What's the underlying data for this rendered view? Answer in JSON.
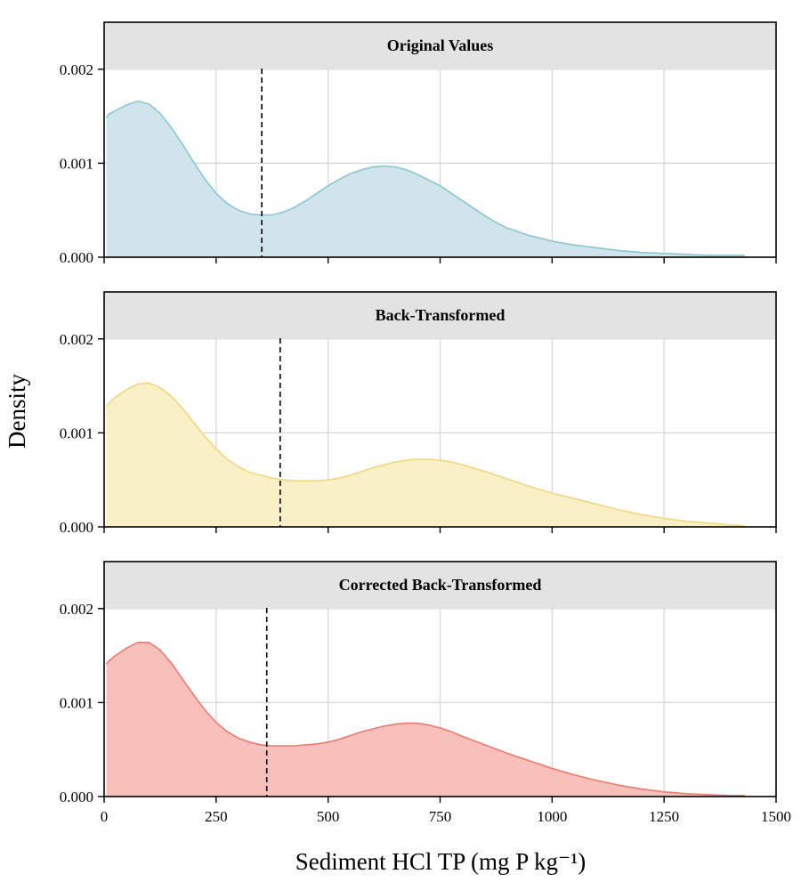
{
  "chart_data": {
    "type": "area",
    "facet_layout": "vertical",
    "xlabel": "Sediment HCl TP (mg P kg⁻¹)",
    "ylabel": "Density",
    "xlim": [
      0,
      1500
    ],
    "ylim": [
      0,
      0.0025
    ],
    "x_ticks": [
      0,
      250,
      500,
      750,
      1000,
      1250,
      1500
    ],
    "x_tick_labels": [
      "0",
      "250",
      "500",
      "750",
      "1000",
      "1250",
      "1500"
    ],
    "y_ticks": [
      0,
      0.001,
      0.002
    ],
    "y_tick_labels": [
      "0.000",
      "0.001",
      "0.002"
    ],
    "grid": true,
    "panels": [
      {
        "title": "Original Values",
        "fill": "#cfe5eb",
        "line": "#8cc6d3",
        "dashed_x": 352,
        "x": [
          5,
          10,
          25,
          50,
          75,
          100,
          125,
          150,
          175,
          200,
          225,
          250,
          275,
          300,
          325,
          350,
          375,
          400,
          425,
          450,
          475,
          500,
          525,
          550,
          575,
          600,
          625,
          650,
          675,
          700,
          725,
          750,
          775,
          800,
          825,
          850,
          875,
          900,
          950,
          1000,
          1050,
          1100,
          1150,
          1200,
          1250,
          1300,
          1350,
          1400,
          1430
        ],
        "y": [
          0.00148,
          0.00152,
          0.00156,
          0.00162,
          0.00166,
          0.00163,
          0.00153,
          0.00138,
          0.0012,
          0.00101,
          0.00083,
          0.00068,
          0.00057,
          0.0005,
          0.00046,
          0.00045,
          0.00045,
          0.00048,
          0.00053,
          0.0006,
          0.00068,
          0.00076,
          0.00083,
          0.00089,
          0.00093,
          0.00096,
          0.00097,
          0.00096,
          0.00093,
          0.00088,
          0.00082,
          0.00076,
          0.00068,
          0.0006,
          0.00052,
          0.00044,
          0.00037,
          0.00031,
          0.00023,
          0.00017,
          0.00013,
          0.0001,
          7e-05,
          5e-05,
          4e-05,
          3e-05,
          2e-05,
          2e-05,
          2e-05
        ]
      },
      {
        "title": "Back-Transformed",
        "fill": "#faf0c8",
        "line": "#f0d77c",
        "dashed_x": 393,
        "x": [
          5,
          10,
          25,
          50,
          75,
          100,
          125,
          150,
          175,
          200,
          225,
          250,
          275,
          300,
          325,
          350,
          375,
          400,
          425,
          450,
          475,
          500,
          525,
          550,
          575,
          600,
          625,
          650,
          675,
          700,
          725,
          750,
          775,
          800,
          850,
          900,
          950,
          1000,
          1050,
          1100,
          1150,
          1200,
          1250,
          1300,
          1350,
          1400,
          1430
        ],
        "y": [
          0.00128,
          0.00131,
          0.00138,
          0.00146,
          0.00152,
          0.00153,
          0.00148,
          0.00139,
          0.00126,
          0.00111,
          0.00096,
          0.00083,
          0.00072,
          0.00064,
          0.00058,
          0.00055,
          0.00052,
          0.0005,
          0.00049,
          0.00049,
          0.00049,
          0.0005,
          0.00052,
          0.00055,
          0.00059,
          0.00063,
          0.00066,
          0.00069,
          0.00071,
          0.00072,
          0.00072,
          0.00071,
          0.00069,
          0.00066,
          0.00059,
          0.00051,
          0.00043,
          0.00036,
          0.0003,
          0.00024,
          0.00018,
          0.00013,
          9e-05,
          6e-05,
          4e-05,
          2e-05,
          1e-05
        ]
      },
      {
        "title": "Corrected Back-Transformed",
        "fill": "#f8c0bb",
        "line": "#ee7a6f",
        "dashed_x": 363,
        "x": [
          5,
          10,
          25,
          50,
          75,
          100,
          125,
          150,
          175,
          200,
          225,
          250,
          275,
          300,
          325,
          350,
          375,
          400,
          425,
          450,
          475,
          500,
          525,
          550,
          575,
          600,
          625,
          650,
          675,
          700,
          725,
          750,
          775,
          800,
          850,
          900,
          950,
          1000,
          1050,
          1100,
          1150,
          1200,
          1250,
          1300,
          1350,
          1400,
          1430
        ],
        "y": [
          0.00141,
          0.00144,
          0.0015,
          0.00158,
          0.00164,
          0.00164,
          0.00156,
          0.00142,
          0.00125,
          0.00108,
          0.00092,
          0.00079,
          0.00069,
          0.00062,
          0.00058,
          0.00055,
          0.00054,
          0.00054,
          0.00054,
          0.00055,
          0.00056,
          0.00058,
          0.00061,
          0.00065,
          0.00069,
          0.00072,
          0.00075,
          0.00077,
          0.00078,
          0.00078,
          0.00076,
          0.00073,
          0.00069,
          0.00064,
          0.00055,
          0.00046,
          0.00038,
          0.0003,
          0.00023,
          0.00017,
          0.00012,
          8e-05,
          5e-05,
          3e-05,
          2e-05,
          1e-05,
          1e-05
        ]
      }
    ]
  }
}
